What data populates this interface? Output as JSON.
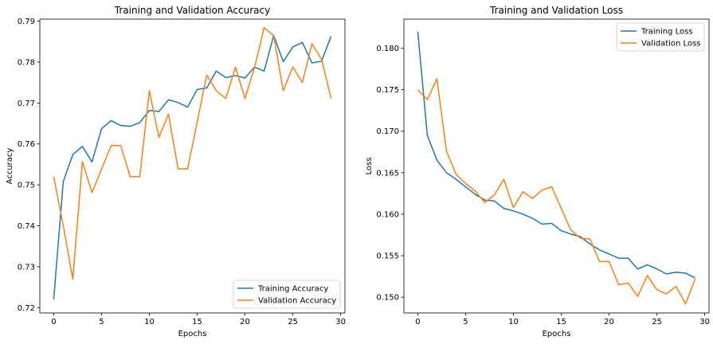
{
  "chart_data": [
    {
      "type": "line",
      "title": "Training and Validation Accuracy",
      "xlabel": "Epochs",
      "ylabel": "Accuracy",
      "xlim": [
        -1.45,
        30.45
      ],
      "ylim": [
        0.7187,
        0.7905
      ],
      "xticks": [
        0,
        5,
        10,
        15,
        20,
        25,
        30
      ],
      "yticks": [
        0.72,
        0.73,
        0.74,
        0.75,
        0.76,
        0.77,
        0.78,
        0.79
      ],
      "xtick_labels": [
        "0",
        "5",
        "10",
        "15",
        "20",
        "25",
        "30"
      ],
      "ytick_labels": [
        "0.72",
        "0.73",
        "0.74",
        "0.75",
        "0.76",
        "0.77",
        "0.78",
        "0.79"
      ],
      "legend_position": "lower-right",
      "grid": false,
      "x": [
        0,
        1,
        2,
        3,
        4,
        5,
        6,
        7,
        8,
        9,
        10,
        11,
        12,
        13,
        14,
        15,
        16,
        17,
        18,
        19,
        20,
        21,
        22,
        23,
        24,
        25,
        26,
        27,
        28,
        29
      ],
      "series": [
        {
          "name": "Training Accuracy",
          "color": "#1f77b4",
          "values": [
            0.722,
            0.7508,
            0.7574,
            0.7594,
            0.7556,
            0.7637,
            0.7657,
            0.7645,
            0.7643,
            0.7652,
            0.7682,
            0.7679,
            0.7708,
            0.7701,
            0.769,
            0.7733,
            0.7737,
            0.7778,
            0.7762,
            0.7767,
            0.7761,
            0.7788,
            0.7778,
            0.7865,
            0.7801,
            0.7837,
            0.7848,
            0.7798,
            0.7802,
            0.7863
          ]
        },
        {
          "name": "Validation Accuracy",
          "color": "#ff7f0e",
          "values": [
            0.752,
            0.74,
            0.727,
            0.7557,
            0.7481,
            0.7538,
            0.7596,
            0.7596,
            0.752,
            0.752,
            0.773,
            0.7616,
            0.7673,
            0.7539,
            0.7539,
            0.7653,
            0.7768,
            0.773,
            0.7711,
            0.7788,
            0.7711,
            0.7787,
            0.7884,
            0.7865,
            0.773,
            0.7788,
            0.775,
            0.7845,
            0.7807,
            0.7711
          ]
        }
      ]
    },
    {
      "type": "line",
      "title": "Training and Validation Loss",
      "xlabel": "Epochs",
      "ylabel": "Loss",
      "xlim": [
        -1.45,
        30.45
      ],
      "ylim": [
        0.1481,
        0.1835
      ],
      "xticks": [
        0,
        5,
        10,
        15,
        20,
        25,
        30
      ],
      "yticks": [
        0.15,
        0.155,
        0.16,
        0.165,
        0.17,
        0.175,
        0.18
      ],
      "xtick_labels": [
        "0",
        "5",
        "10",
        "15",
        "20",
        "25",
        "30"
      ],
      "ytick_labels": [
        "0.150",
        "0.155",
        "0.160",
        "0.165",
        "0.170",
        "0.175",
        "0.180"
      ],
      "legend_position": "upper-right",
      "grid": false,
      "x": [
        0,
        1,
        2,
        3,
        4,
        5,
        6,
        7,
        8,
        9,
        10,
        11,
        12,
        13,
        14,
        15,
        16,
        17,
        18,
        19,
        20,
        21,
        22,
        23,
        24,
        25,
        26,
        27,
        28,
        29
      ],
      "series": [
        {
          "name": "Training Loss",
          "color": "#1f77b4",
          "values": [
            0.182,
            0.1695,
            0.1665,
            0.165,
            0.1642,
            0.1633,
            0.1624,
            0.1617,
            0.1616,
            0.1607,
            0.1604,
            0.16,
            0.1595,
            0.1588,
            0.1589,
            0.158,
            0.1576,
            0.1573,
            0.1564,
            0.1557,
            0.1552,
            0.1547,
            0.1547,
            0.1534,
            0.1539,
            0.1534,
            0.1528,
            0.153,
            0.1529,
            0.1523
          ]
        },
        {
          "name": "Validation Loss",
          "color": "#ff7f0e",
          "values": [
            0.175,
            0.1738,
            0.1763,
            0.1676,
            0.1648,
            0.1637,
            0.1628,
            0.1614,
            0.1623,
            0.1642,
            0.1608,
            0.1627,
            0.1619,
            0.1629,
            0.1633,
            0.1607,
            0.1581,
            0.1571,
            0.157,
            0.1543,
            0.1543,
            0.1515,
            0.1517,
            0.1501,
            0.1526,
            0.1509,
            0.1504,
            0.1513,
            0.1492,
            0.1522
          ]
        }
      ]
    }
  ]
}
